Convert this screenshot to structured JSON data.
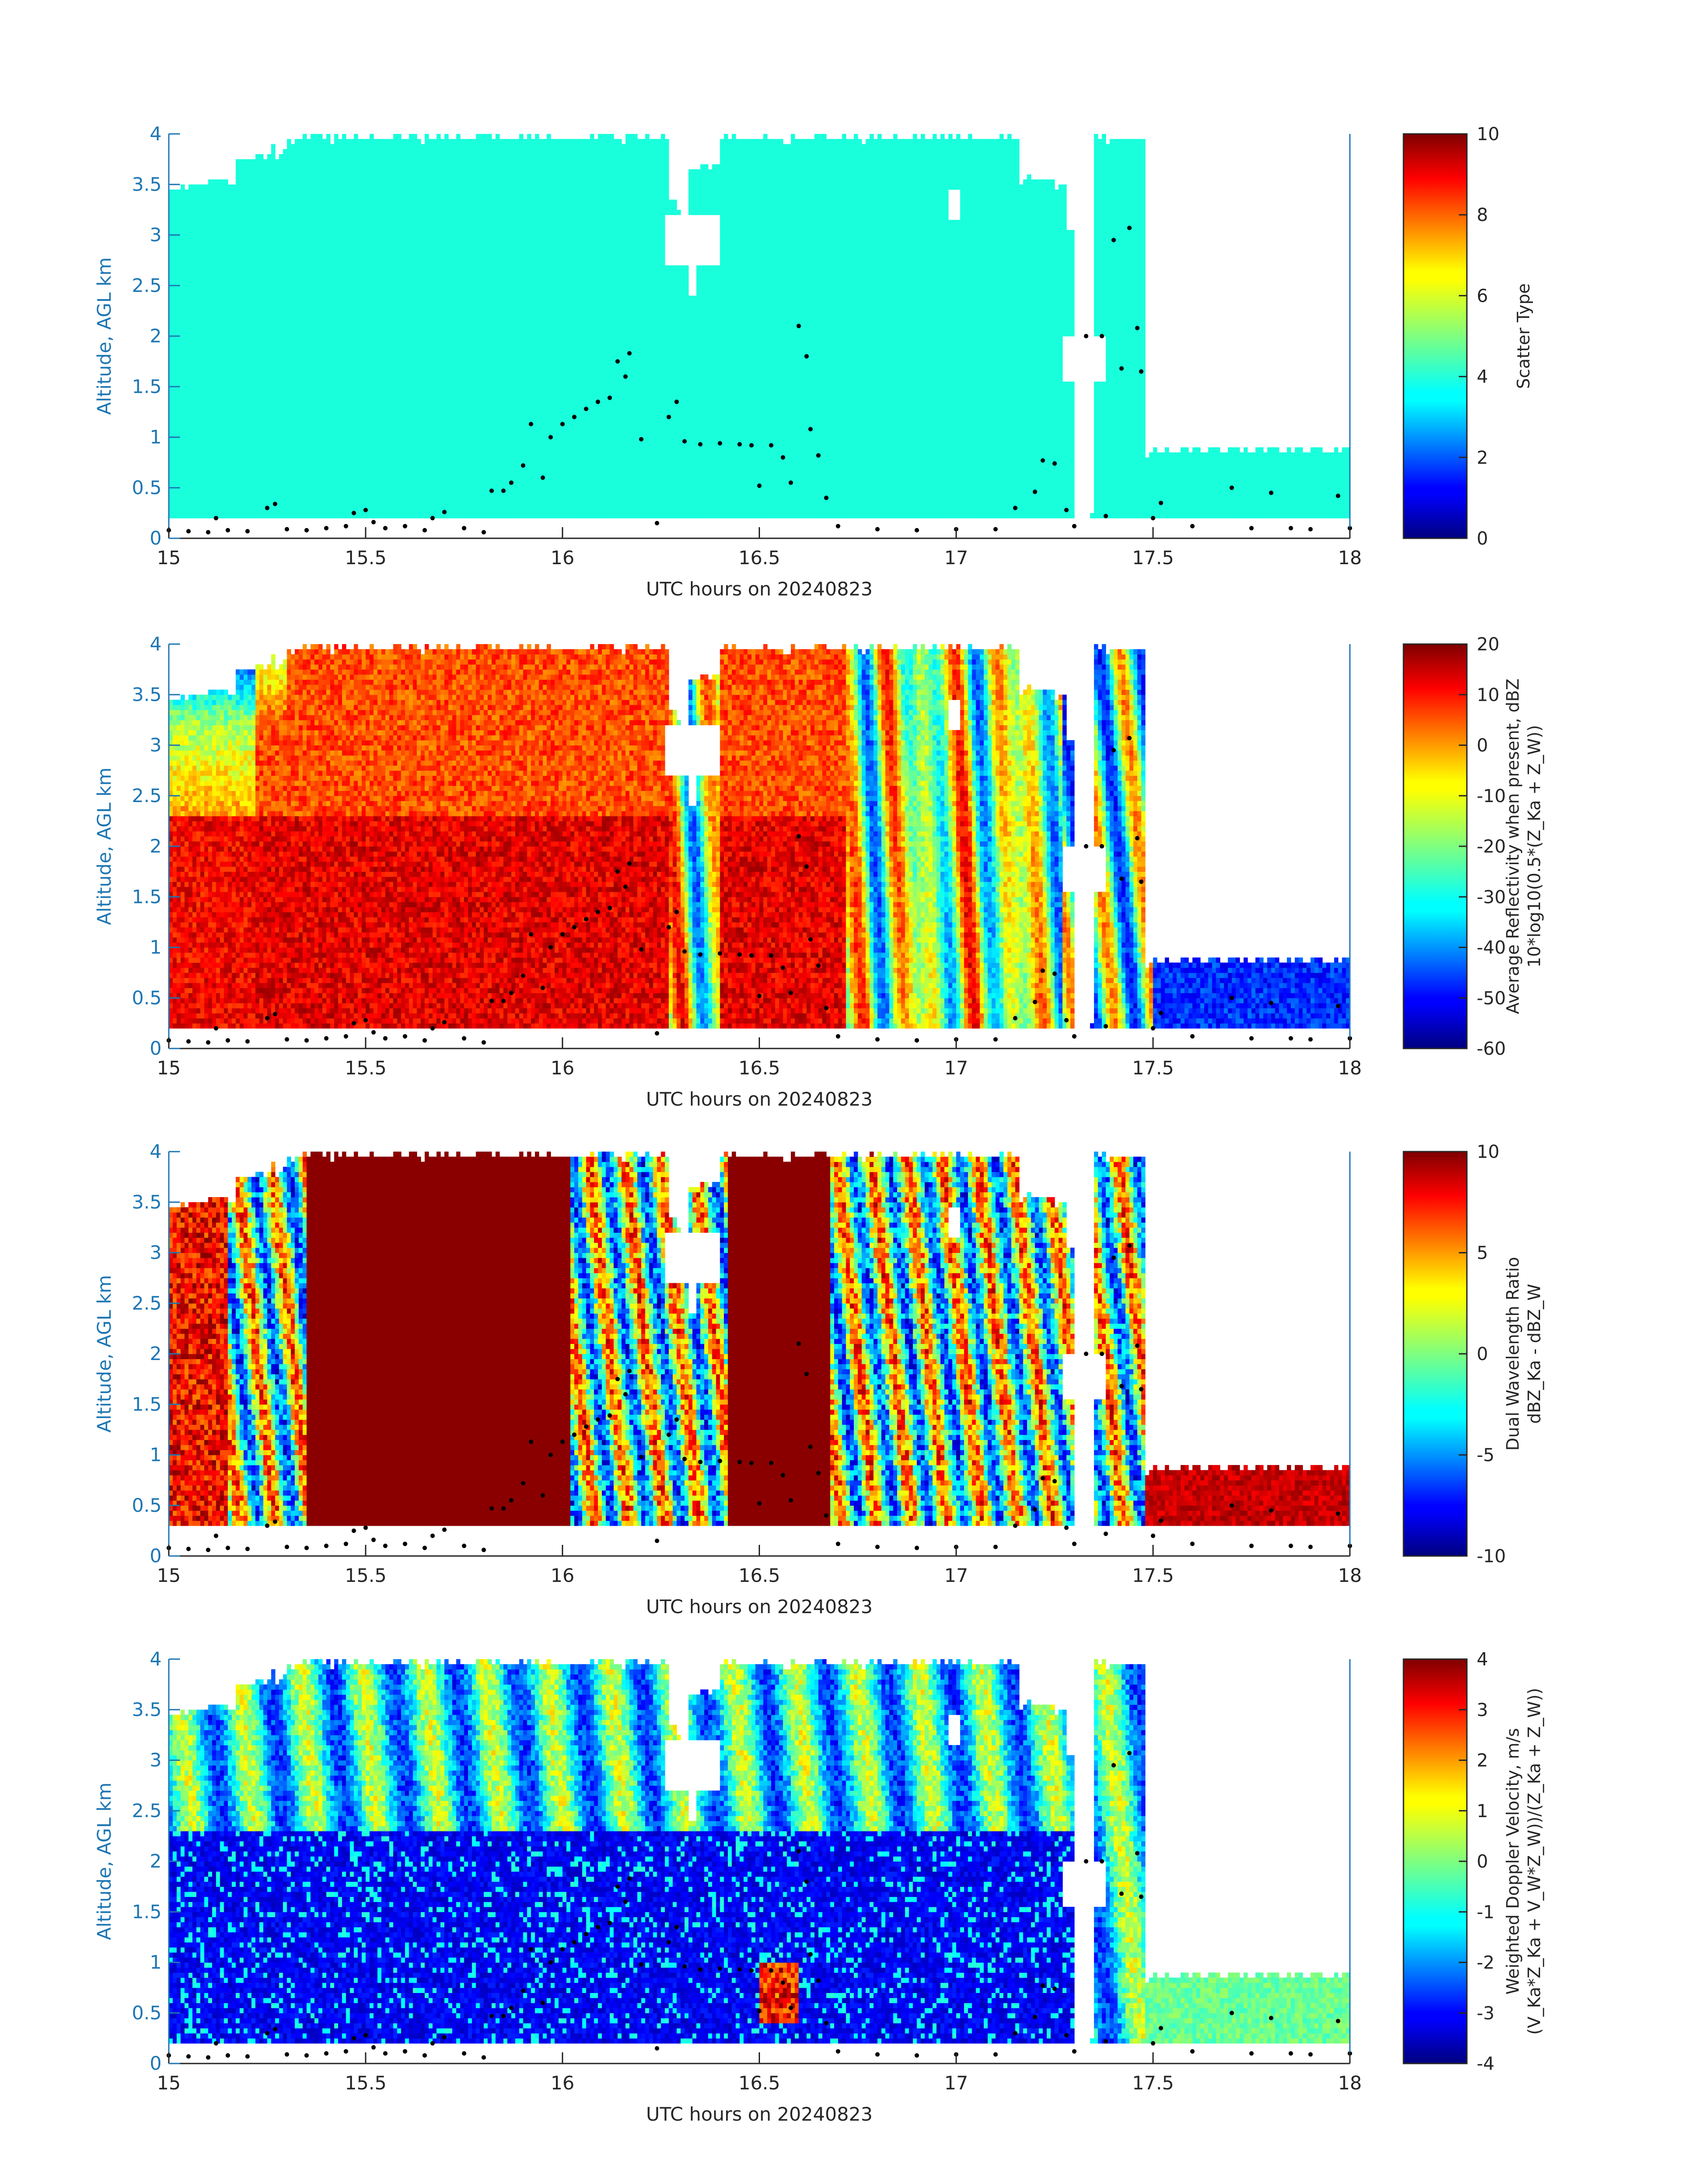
{
  "figure": {
    "xlabel": "UTC hours on 20240823",
    "ylabel": "Altitude, AGL km",
    "xticks": [
      "15",
      "15.5",
      "16",
      "16.5",
      "17",
      "17.5",
      "18"
    ],
    "yticks": [
      "0",
      "0.5",
      "1",
      "1.5",
      "2",
      "2.5",
      "3",
      "3.5",
      "4"
    ]
  },
  "chart_data": [
    {
      "type": "heatmap",
      "xlabel": "UTC hours on 20240823",
      "ylabel": "Altitude, AGL km",
      "xlim": [
        15,
        18
      ],
      "ylim": [
        0,
        4
      ],
      "colorbar": {
        "label_lines": [
          "Scatter Type"
        ],
        "ticks": [
          "0",
          "2",
          "4",
          "6",
          "8",
          "10"
        ],
        "range": [
          0,
          10
        ]
      },
      "variable": "scatter_type",
      "dominant_value": 4
    },
    {
      "type": "heatmap",
      "xlabel": "UTC hours on 20240823",
      "ylabel": "Altitude, AGL km",
      "xlim": [
        15,
        18
      ],
      "ylim": [
        0,
        4
      ],
      "colorbar": {
        "label_lines": [
          "Average Reflectivity when present, dBZ",
          "10*log10(0.5*(Z_Ka + Z_W))"
        ],
        "ticks": [
          "20",
          "10",
          "0",
          "-10",
          "-20",
          "-30",
          "-40",
          "-50",
          "-60"
        ],
        "range": [
          -60,
          20
        ]
      },
      "variable": "reflectivity"
    },
    {
      "type": "heatmap",
      "xlabel": "UTC hours on 20240823",
      "ylabel": "Altitude, AGL km",
      "xlim": [
        15,
        18
      ],
      "ylim": [
        0,
        4
      ],
      "colorbar": {
        "label_lines": [
          "Dual Wavelength Ratio",
          "dBZ_Ka - dBZ_W"
        ],
        "ticks": [
          "10",
          "5",
          "0",
          "-5",
          "-10"
        ],
        "range": [
          -10,
          10
        ]
      },
      "variable": "dwr"
    },
    {
      "type": "heatmap",
      "xlabel": "UTC hours on 20240823",
      "ylabel": "Altitude, AGL km",
      "xlim": [
        15,
        18
      ],
      "ylim": [
        0,
        4
      ],
      "colorbar": {
        "label_lines": [
          "Weighted Doppler Velocity, m/s",
          "(V_Ka*Z_Ka + V_W*Z_W))/(Z_Ka + Z_W))"
        ],
        "ticks": [
          "4",
          "3",
          "2",
          "1",
          "0",
          "-1",
          "-2",
          "-3",
          "-4"
        ],
        "range": [
          -4,
          4
        ]
      },
      "variable": "doppler_velocity"
    }
  ],
  "flight_track": {
    "description_units": "UTC hour, km",
    "points": [
      [
        15.0,
        0.08
      ],
      [
        15.05,
        0.07
      ],
      [
        15.1,
        0.06
      ],
      [
        15.12,
        0.2
      ],
      [
        15.15,
        0.08
      ],
      [
        15.2,
        0.07
      ],
      [
        15.25,
        0.3
      ],
      [
        15.27,
        0.34
      ],
      [
        15.3,
        0.09
      ],
      [
        15.35,
        0.08
      ],
      [
        15.4,
        0.1
      ],
      [
        15.45,
        0.12
      ],
      [
        15.47,
        0.25
      ],
      [
        15.5,
        0.28
      ],
      [
        15.52,
        0.16
      ],
      [
        15.55,
        0.1
      ],
      [
        15.6,
        0.12
      ],
      [
        15.65,
        0.08
      ],
      [
        15.67,
        0.2
      ],
      [
        15.7,
        0.26
      ],
      [
        15.75,
        0.1
      ],
      [
        15.8,
        0.06
      ],
      [
        15.82,
        0.47
      ],
      [
        15.85,
        0.47
      ],
      [
        15.87,
        0.55
      ],
      [
        15.9,
        0.72
      ],
      [
        15.92,
        1.13
      ],
      [
        15.95,
        0.6
      ],
      [
        15.97,
        1.0
      ],
      [
        16.0,
        1.13
      ],
      [
        16.03,
        1.2
      ],
      [
        16.06,
        1.28
      ],
      [
        16.09,
        1.35
      ],
      [
        16.12,
        1.39
      ],
      [
        16.14,
        1.75
      ],
      [
        16.16,
        1.6
      ],
      [
        16.17,
        1.83
      ],
      [
        16.2,
        0.98
      ],
      [
        16.24,
        0.15
      ],
      [
        16.27,
        1.2
      ],
      [
        16.29,
        1.35
      ],
      [
        16.31,
        0.96
      ],
      [
        16.35,
        0.93
      ],
      [
        16.4,
        0.94
      ],
      [
        16.45,
        0.93
      ],
      [
        16.48,
        0.92
      ],
      [
        16.5,
        0.52
      ],
      [
        16.53,
        0.92
      ],
      [
        16.56,
        0.8
      ],
      [
        16.58,
        0.55
      ],
      [
        16.6,
        2.1
      ],
      [
        16.62,
        1.8
      ],
      [
        16.63,
        1.08
      ],
      [
        16.65,
        0.82
      ],
      [
        16.67,
        0.4
      ],
      [
        16.7,
        0.12
      ],
      [
        16.8,
        0.09
      ],
      [
        16.9,
        0.08
      ],
      [
        17.0,
        0.09
      ],
      [
        17.1,
        0.09
      ],
      [
        17.15,
        0.3
      ],
      [
        17.2,
        0.46
      ],
      [
        17.22,
        0.77
      ],
      [
        17.25,
        0.74
      ],
      [
        17.28,
        0.28
      ],
      [
        17.3,
        0.12
      ],
      [
        17.33,
        2.0
      ],
      [
        17.37,
        2.0
      ],
      [
        17.38,
        0.22
      ],
      [
        17.4,
        2.95
      ],
      [
        17.42,
        1.68
      ],
      [
        17.44,
        3.07
      ],
      [
        17.46,
        2.08
      ],
      [
        17.47,
        1.65
      ],
      [
        17.5,
        0.2
      ],
      [
        17.52,
        0.35
      ],
      [
        17.6,
        0.12
      ],
      [
        17.7,
        0.5
      ],
      [
        17.75,
        0.1
      ],
      [
        17.8,
        0.45
      ],
      [
        17.85,
        0.1
      ],
      [
        17.9,
        0.09
      ],
      [
        17.97,
        0.42
      ],
      [
        18.0,
        0.1
      ]
    ]
  }
}
